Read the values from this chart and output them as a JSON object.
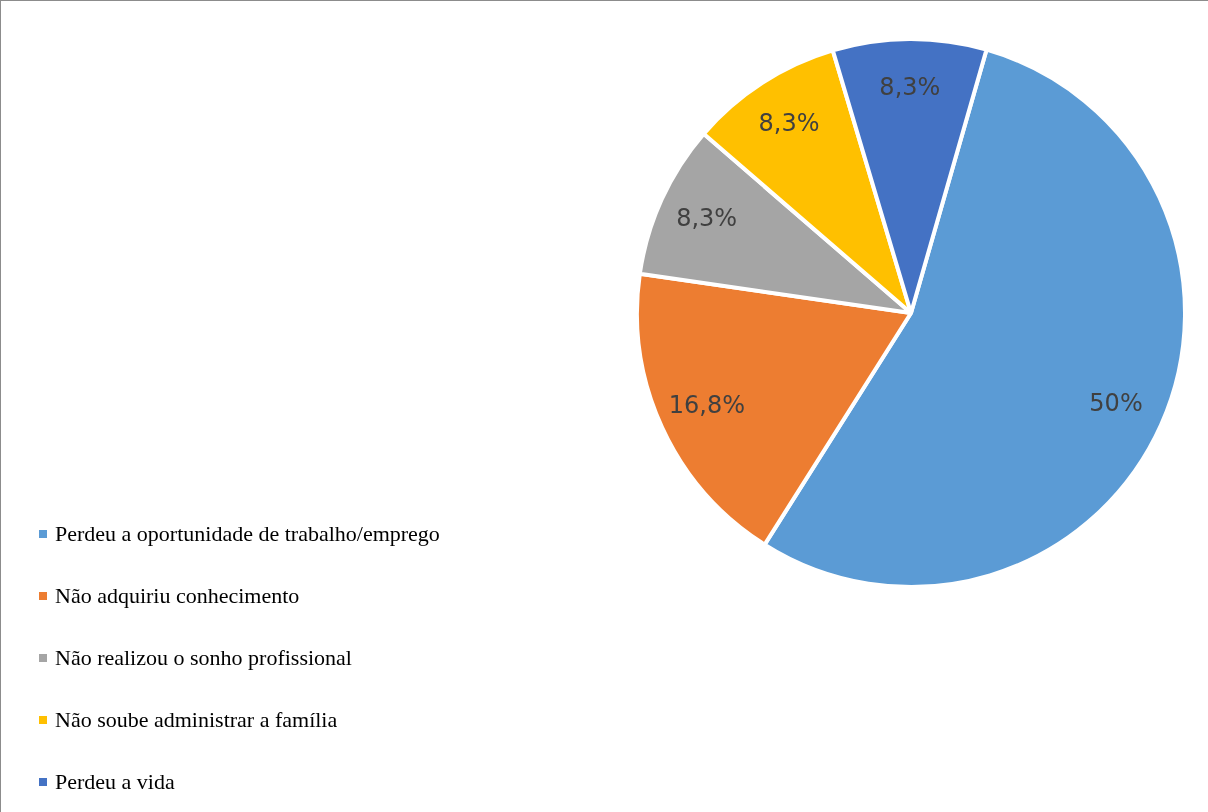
{
  "chart_data": {
    "type": "pie",
    "categories": [
      "Perdeu a oportunidade de trabalho/emprego",
      "Não adquiriu conhecimento",
      "Não realizou o sonho profissional",
      "Não soube administrar a família",
      "Perdeu a vida"
    ],
    "values": [
      50,
      16.8,
      8.3,
      8.3,
      8.3
    ],
    "value_labels": [
      "50%",
      "16,8%",
      "8,3%",
      "8,3%",
      "8,3%"
    ],
    "colors": [
      "#5b9bd5",
      "#ed7d31",
      "#a5a5a5",
      "#ffc000",
      "#4472c4"
    ],
    "legend": "bottom left"
  }
}
